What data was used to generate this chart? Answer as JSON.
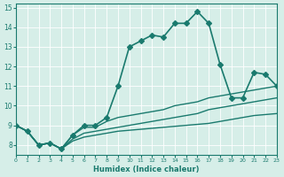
{
  "xlabel": "Humidex (Indice chaleur)",
  "ylabel": "",
  "xlim": [
    0,
    23
  ],
  "ylim": [
    7.5,
    15.2
  ],
  "xticks": [
    0,
    1,
    2,
    3,
    4,
    5,
    6,
    7,
    8,
    9,
    10,
    11,
    12,
    13,
    14,
    15,
    16,
    17,
    18,
    19,
    20,
    21,
    22,
    23
  ],
  "yticks": [
    8,
    9,
    10,
    11,
    12,
    13,
    14,
    15
  ],
  "bg_color": "#d6eee8",
  "line_color": "#1a7a6e",
  "grid_color": "#ffffff",
  "series": [
    {
      "x": [
        0,
        1,
        2,
        3,
        4,
        5,
        6,
        7,
        8,
        9,
        10,
        11,
        12,
        13,
        14,
        15,
        16,
        17,
        18,
        19,
        20,
        21,
        22,
        23
      ],
      "y": [
        9.0,
        8.7,
        8.0,
        8.1,
        7.8,
        8.5,
        9.0,
        9.0,
        9.4,
        11.0,
        13.0,
        13.3,
        13.6,
        13.5,
        14.2,
        14.2,
        14.8,
        14.2,
        12.1,
        10.4,
        10.4,
        11.7,
        11.6,
        11.0
      ],
      "marker": "D",
      "markersize": 3,
      "linewidth": 1.2
    },
    {
      "x": [
        0,
        1,
        2,
        3,
        4,
        5,
        6,
        7,
        8,
        9,
        10,
        11,
        12,
        13,
        14,
        15,
        16,
        17,
        18,
        19,
        20,
        21,
        22,
        23
      ],
      "y": [
        9.0,
        8.7,
        8.0,
        8.1,
        7.8,
        8.5,
        8.9,
        8.9,
        9.2,
        9.4,
        9.5,
        9.6,
        9.7,
        9.8,
        10.0,
        10.1,
        10.2,
        10.4,
        10.5,
        10.6,
        10.7,
        10.8,
        10.9,
        11.0
      ],
      "marker": null,
      "markersize": 0,
      "linewidth": 1.0
    },
    {
      "x": [
        0,
        1,
        2,
        3,
        4,
        5,
        6,
        7,
        8,
        9,
        10,
        11,
        12,
        13,
        14,
        15,
        16,
        17,
        18,
        19,
        20,
        21,
        22,
        23
      ],
      "y": [
        9.0,
        8.7,
        8.0,
        8.1,
        7.8,
        8.3,
        8.6,
        8.7,
        8.8,
        8.9,
        9.0,
        9.1,
        9.2,
        9.3,
        9.4,
        9.5,
        9.6,
        9.8,
        9.9,
        10.0,
        10.1,
        10.2,
        10.3,
        10.4
      ],
      "marker": null,
      "markersize": 0,
      "linewidth": 1.0
    },
    {
      "x": [
        0,
        1,
        2,
        3,
        4,
        5,
        6,
        7,
        8,
        9,
        10,
        11,
        12,
        13,
        14,
        15,
        16,
        17,
        18,
        19,
        20,
        21,
        22,
        23
      ],
      "y": [
        9.0,
        8.7,
        8.0,
        8.1,
        7.8,
        8.2,
        8.4,
        8.5,
        8.6,
        8.7,
        8.75,
        8.8,
        8.85,
        8.9,
        8.95,
        9.0,
        9.05,
        9.1,
        9.2,
        9.3,
        9.4,
        9.5,
        9.55,
        9.6
      ],
      "marker": null,
      "markersize": 0,
      "linewidth": 1.0
    }
  ]
}
